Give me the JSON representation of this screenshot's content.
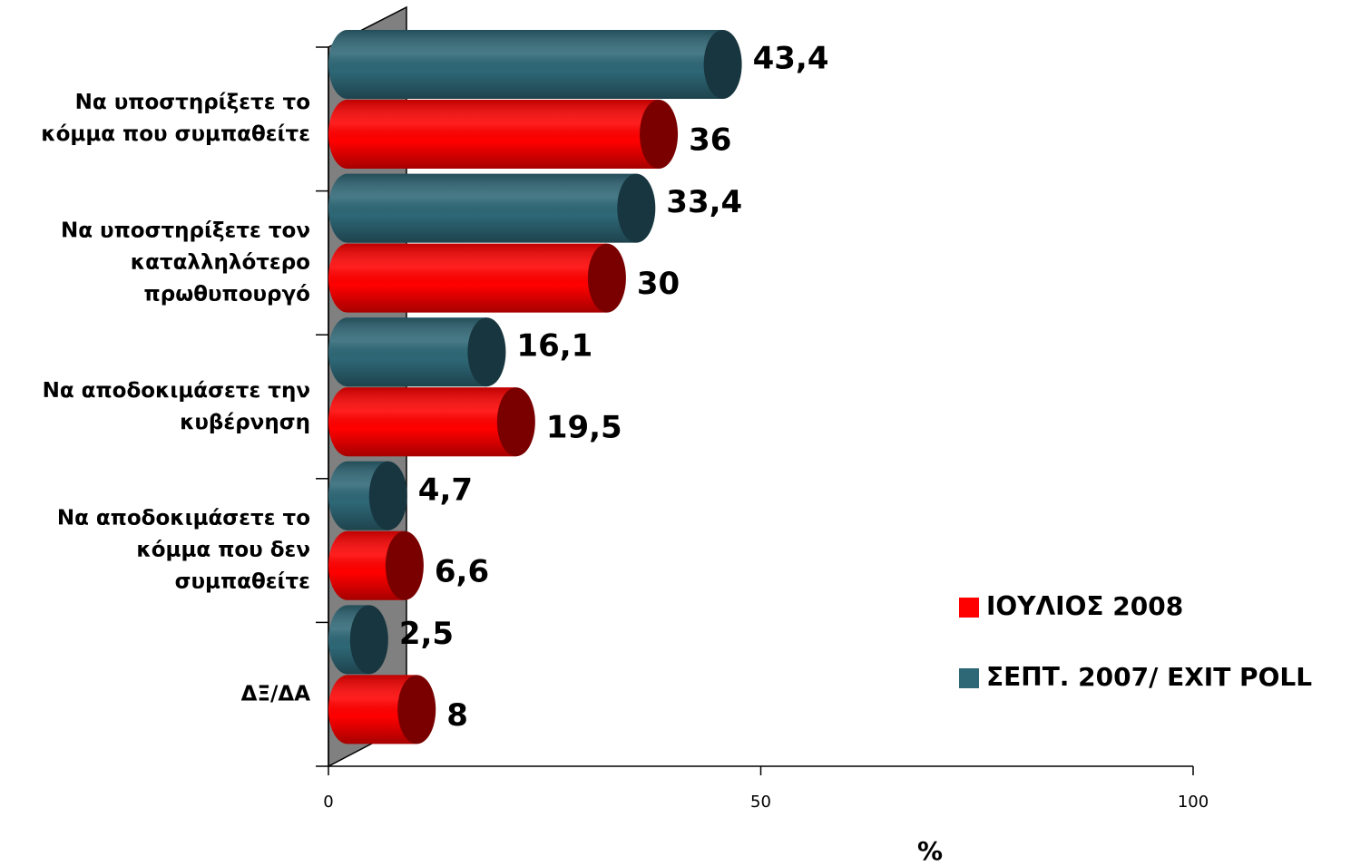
{
  "chart_data": {
    "type": "bar",
    "orientation": "horizontal",
    "categories": [
      "Να υποστηρίξετε το κόμμα που συμπαθείτε",
      "Να υποστηρίξετε τον καταλληλότερο πρωθυπουργό",
      "Να αποδοκιμάσετε την κυβέρνηση",
      "Να αποδοκιμάσετε το κόμμα που δεν συμπαθείτε",
      "ΔΞ/ΔΑ"
    ],
    "series": [
      {
        "name": "ΙΟΥΛΙΟΣ 2008",
        "color": "#ff0000",
        "cap_color": "#7a0000",
        "values": [
          36,
          30,
          19.5,
          6.6,
          8
        ],
        "value_labels": [
          "36",
          "30",
          "19,5",
          "6,6",
          "8"
        ]
      },
      {
        "name": "ΣΕΠΤ. 2007/ EXIT POLL",
        "color": "#2e6776",
        "cap_color": "#17363f",
        "values": [
          43.4,
          33.4,
          16.1,
          4.7,
          2.5
        ],
        "value_labels": [
          "43,4",
          "33,4",
          "16,1",
          "4,7",
          "2,5"
        ]
      }
    ],
    "xlim": [
      0,
      100
    ],
    "xticks": [
      0,
      50,
      100
    ],
    "xlabel": "%",
    "legend": "right"
  }
}
